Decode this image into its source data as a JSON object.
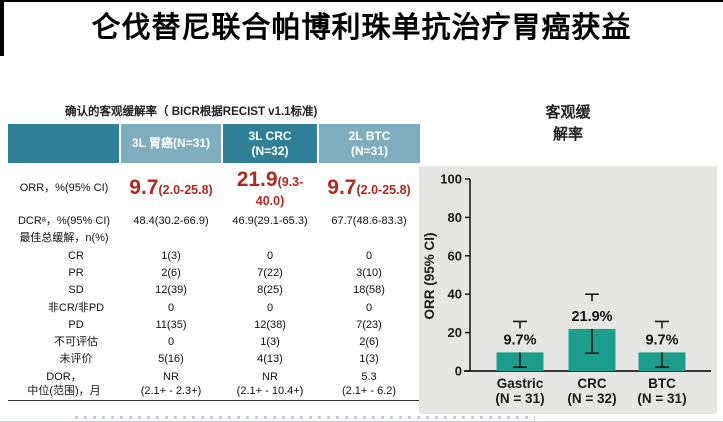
{
  "title": "仑伐替尼联合帕博利珠单抗治疗胃癌获益",
  "colors": {
    "header_dark": "#2f7f96",
    "header_light": "#7fadbe",
    "accent_red": "#b2281e",
    "bar_teal": "#1d9e8c",
    "plot_bg": "#e6e6e4",
    "axis_ink": "#1a1a1a"
  },
  "table_section": {
    "caption": "确认的客观缓解率（ BICR根据RECIST v1.1标准)",
    "columns": [
      "",
      "3L 胃癌(N=31)",
      "3L CRC\n(N=32)",
      "2L BTC\n(N=31)"
    ],
    "orr_row": {
      "label": "ORR，%(95% CI)",
      "values": [
        {
          "main": "9.7",
          "ci": "(2.0-25.8)"
        },
        {
          "main": "21.9",
          "ci": "(9.3-40.0)"
        },
        {
          "main": "9.7",
          "ci": "(2.0-25.8)"
        }
      ]
    },
    "rows": [
      {
        "label": "DCRᵃ，%(95% CI)",
        "indent": false,
        "values": [
          "48.4(30.2-66.9)",
          "46.9(29.1-65.3)",
          "67.7(48.6-83.3)"
        ]
      },
      {
        "label": "最佳总缓解，n(%)",
        "indent": false,
        "values": [
          "",
          "",
          ""
        ]
      },
      {
        "label": "CR",
        "indent": true,
        "values": [
          "1(3)",
          "0",
          "0"
        ]
      },
      {
        "label": "PR",
        "indent": true,
        "values": [
          "2(6)",
          "7(22)",
          "3(10)"
        ]
      },
      {
        "label": "SD",
        "indent": true,
        "values": [
          "12(39)",
          "8(25)",
          "18(58)"
        ]
      },
      {
        "label": "非CR/非PD",
        "indent": true,
        "values": [
          "0",
          "0",
          "0"
        ]
      },
      {
        "label": "PD",
        "indent": true,
        "values": [
          "11(35)",
          "12(38)",
          "7(23)"
        ]
      },
      {
        "label": "不可评估",
        "indent": true,
        "values": [
          "0",
          "1(3)",
          "2(6)"
        ]
      },
      {
        "label": "未评价",
        "indent": true,
        "values": [
          "5(16)",
          "4(13)",
          "1(3)"
        ]
      },
      {
        "label": "DOR，\n中位(范围)，月",
        "indent": false,
        "values": [
          "NR\n(2.1+ - 2.3+)",
          "NR\n(2.1+ - 10.4+)",
          "5.3\n(2.1+ - 6.2)"
        ]
      }
    ]
  },
  "chart_data": {
    "type": "bar",
    "title": "客观缓\n解率",
    "ylabel": "ORR (95% CI)",
    "ylim": [
      0,
      100
    ],
    "yticks": [
      0,
      20,
      40,
      60,
      80,
      100
    ],
    "categories": [
      "Gastric\n(N = 31)",
      "CRC\n(N = 32)",
      "BTC\n(N = 31)"
    ],
    "values": [
      9.7,
      21.9,
      9.7
    ],
    "bar_labels": [
      "9.7%",
      "21.9%",
      "9.7%"
    ],
    "ci_low": [
      2.0,
      9.3,
      2.0
    ],
    "ci_high": [
      25.8,
      40.0,
      25.8
    ],
    "grid": false,
    "legend": "none"
  }
}
